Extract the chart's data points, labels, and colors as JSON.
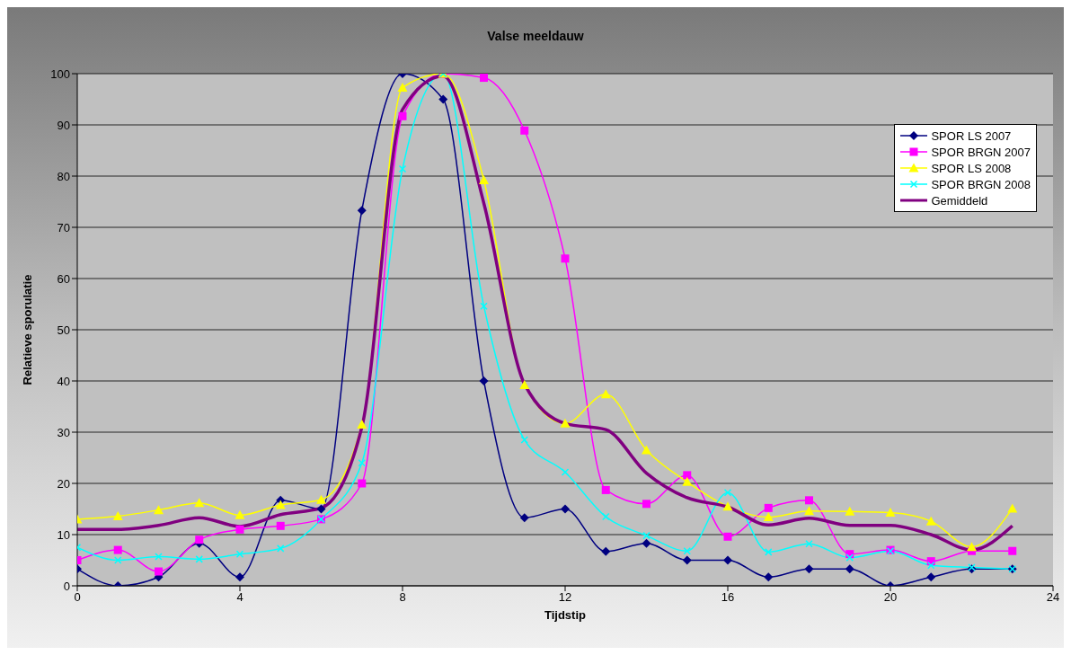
{
  "chart_data": {
    "type": "line",
    "title": "Valse meeldauw",
    "xlabel": "Tijdstip",
    "ylabel": "Relatieve sporulatie",
    "x": [
      0,
      1,
      2,
      3,
      4,
      5,
      6,
      7,
      8,
      9,
      10,
      11,
      12,
      13,
      14,
      15,
      16,
      17,
      18,
      19,
      20,
      21,
      22,
      23
    ],
    "xlim": [
      0,
      24
    ],
    "xticks": [
      0,
      4,
      8,
      12,
      16,
      20,
      24
    ],
    "ylim": [
      0,
      100
    ],
    "yticks": [
      0,
      10,
      20,
      30,
      40,
      50,
      60,
      70,
      80,
      90,
      100
    ],
    "grid": "y",
    "legend": "top right",
    "series": [
      {
        "name": "SPOR LS 2007",
        "color": "#000080",
        "marker": "diamond",
        "values": [
          3.3,
          0,
          1.7,
          8.3,
          1.7,
          16.7,
          15,
          73.3,
          100,
          95,
          40,
          13.3,
          15,
          6.7,
          8.3,
          5,
          5,
          1.7,
          3.3,
          3.3,
          0,
          1.7,
          3.3,
          3.3
        ]
      },
      {
        "name": "SPOR BRGN 2007",
        "color": "#ff00ff",
        "marker": "square",
        "values": [
          5,
          7,
          2.8,
          9,
          11,
          11.7,
          13,
          20,
          91.7,
          100,
          99.2,
          88.9,
          63.9,
          18.7,
          16,
          21.6,
          9.6,
          15.2,
          16.7,
          6.2,
          7,
          4.8,
          6.8,
          6.8
        ]
      },
      {
        "name": "SPOR LS 2008",
        "color": "#ffff00",
        "marker": "triangle",
        "values": [
          13,
          13.6,
          14.8,
          16.2,
          13.8,
          15.8,
          16.8,
          31.5,
          97.3,
          100,
          79.2,
          39.2,
          31.7,
          37.4,
          26.5,
          20.3,
          15.5,
          13.4,
          14.6,
          14.5,
          14.3,
          12.6,
          7.6,
          15.1
        ]
      },
      {
        "name": "SPOR BRGN 2008",
        "color": "#00ffff",
        "marker": "cross",
        "values": [
          7.5,
          5,
          5.7,
          5.2,
          6.2,
          7.3,
          13,
          24,
          81.4,
          100,
          54.6,
          28.5,
          22.2,
          13.5,
          9.8,
          6.8,
          18.2,
          6.6,
          8.2,
          5.5,
          6.8,
          4,
          3.6,
          3.3
        ]
      },
      {
        "name": "Gemiddeld",
        "color": "#800080",
        "marker": "none",
        "values": [
          11,
          11,
          11.8,
          13.3,
          11.6,
          13.9,
          15.2,
          31,
          93,
          99.5,
          74.7,
          39.4,
          31.7,
          30.5,
          22,
          17.2,
          15.4,
          11.9,
          13.2,
          11.8,
          11.8,
          10,
          7,
          11.7
        ]
      }
    ]
  }
}
